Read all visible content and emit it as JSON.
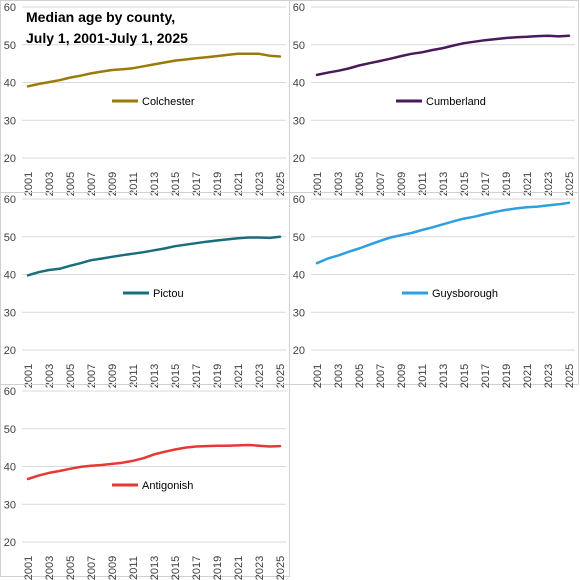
{
  "chart_title": [
    "Median age by county,",
    "July 1, 2001-July 1, 2025"
  ],
  "chart_data": [
    {
      "type": "line",
      "x": [
        2001,
        2002,
        2003,
        2004,
        2005,
        2006,
        2007,
        2008,
        2009,
        2010,
        2011,
        2012,
        2013,
        2014,
        2015,
        2016,
        2017,
        2018,
        2019,
        2020,
        2021,
        2022,
        2023,
        2024,
        2025
      ],
      "xticks": [
        "2001",
        "2003",
        "2005",
        "2007",
        "2009",
        "2011",
        "2013",
        "2015",
        "2017",
        "2019",
        "2021",
        "2023",
        "2025"
      ],
      "yticks": [
        "20",
        "30",
        "40",
        "50",
        "60"
      ],
      "ylim": [
        20,
        60
      ],
      "series": [
        {
          "name": "Colchester",
          "color": "#9C7A0A",
          "values": [
            39.0,
            39.6,
            40.1,
            40.6,
            41.3,
            41.8,
            42.4,
            42.9,
            43.3,
            43.5,
            43.8,
            44.3,
            44.8,
            45.3,
            45.8,
            46.1,
            46.4,
            46.7,
            47.0,
            47.3,
            47.6,
            47.6,
            47.6,
            47.1,
            46.9
          ]
        }
      ]
    },
    {
      "type": "line",
      "x": [
        2001,
        2002,
        2003,
        2004,
        2005,
        2006,
        2007,
        2008,
        2009,
        2010,
        2011,
        2012,
        2013,
        2014,
        2015,
        2016,
        2017,
        2018,
        2019,
        2020,
        2021,
        2022,
        2023,
        2024,
        2025
      ],
      "xticks": [
        "2001",
        "2003",
        "2005",
        "2007",
        "2009",
        "2011",
        "2013",
        "2015",
        "2017",
        "2019",
        "2021",
        "2023",
        "2025"
      ],
      "yticks": [
        "20",
        "30",
        "40",
        "50",
        "60"
      ],
      "ylim": [
        20,
        60
      ],
      "series": [
        {
          "name": "Cumberland",
          "color": "#4A1A5A",
          "values": [
            42.0,
            42.6,
            43.1,
            43.7,
            44.5,
            45.1,
            45.7,
            46.3,
            47.0,
            47.6,
            48.0,
            48.6,
            49.1,
            49.8,
            50.4,
            50.8,
            51.2,
            51.5,
            51.8,
            52.0,
            52.1,
            52.3,
            52.4,
            52.2,
            52.4
          ]
        }
      ]
    },
    {
      "type": "line",
      "x": [
        2001,
        2002,
        2003,
        2004,
        2005,
        2006,
        2007,
        2008,
        2009,
        2010,
        2011,
        2012,
        2013,
        2014,
        2015,
        2016,
        2017,
        2018,
        2019,
        2020,
        2021,
        2022,
        2023,
        2024,
        2025
      ],
      "xticks": [
        "2001",
        "2003",
        "2005",
        "2007",
        "2009",
        "2011",
        "2013",
        "2015",
        "2017",
        "2019",
        "2021",
        "2023",
        "2025"
      ],
      "yticks": [
        "20",
        "30",
        "40",
        "50",
        "60"
      ],
      "ylim": [
        20,
        60
      ],
      "series": [
        {
          "name": "Pictou",
          "color": "#1A6E7C",
          "values": [
            39.8,
            40.6,
            41.2,
            41.5,
            42.3,
            43.0,
            43.8,
            44.2,
            44.7,
            45.1,
            45.5,
            45.9,
            46.4,
            46.9,
            47.5,
            47.9,
            48.3,
            48.7,
            49.0,
            49.3,
            49.6,
            49.8,
            49.8,
            49.7,
            50.0
          ]
        }
      ]
    },
    {
      "type": "line",
      "x": [
        2001,
        2002,
        2003,
        2004,
        2005,
        2006,
        2007,
        2008,
        2009,
        2010,
        2011,
        2012,
        2013,
        2014,
        2015,
        2016,
        2017,
        2018,
        2019,
        2020,
        2021,
        2022,
        2023,
        2024,
        2025
      ],
      "xticks": [
        "2001",
        "2003",
        "2005",
        "2007",
        "2009",
        "2011",
        "2013",
        "2015",
        "2017",
        "2019",
        "2021",
        "2023",
        "2025"
      ],
      "yticks": [
        "20",
        "30",
        "40",
        "50",
        "60"
      ],
      "ylim": [
        20,
        60
      ],
      "series": [
        {
          "name": "Guysborough",
          "color": "#2E9FE0",
          "values": [
            43.0,
            44.2,
            45.0,
            46.0,
            46.9,
            47.9,
            48.9,
            49.8,
            50.4,
            51.0,
            51.8,
            52.5,
            53.3,
            54.1,
            54.8,
            55.3,
            56.0,
            56.6,
            57.1,
            57.5,
            57.8,
            58.0,
            58.3,
            58.6,
            59.0
          ]
        }
      ]
    },
    {
      "type": "line",
      "x": [
        2001,
        2002,
        2003,
        2004,
        2005,
        2006,
        2007,
        2008,
        2009,
        2010,
        2011,
        2012,
        2013,
        2014,
        2015,
        2016,
        2017,
        2018,
        2019,
        2020,
        2021,
        2022,
        2023,
        2024,
        2025
      ],
      "xticks": [
        "2001",
        "2003",
        "2005",
        "2007",
        "2009",
        "2011",
        "2013",
        "2015",
        "2017",
        "2019",
        "2021",
        "2023",
        "2025"
      ],
      "yticks": [
        "20",
        "30",
        "40",
        "50",
        "60"
      ],
      "ylim": [
        20,
        60
      ],
      "series": [
        {
          "name": "Antigonish",
          "color": "#E53935",
          "values": [
            36.7,
            37.6,
            38.3,
            38.8,
            39.4,
            39.9,
            40.2,
            40.4,
            40.7,
            41.0,
            41.5,
            42.2,
            43.2,
            43.9,
            44.5,
            45.0,
            45.3,
            45.4,
            45.5,
            45.5,
            45.6,
            45.7,
            45.5,
            45.3,
            45.4
          ]
        }
      ]
    }
  ]
}
